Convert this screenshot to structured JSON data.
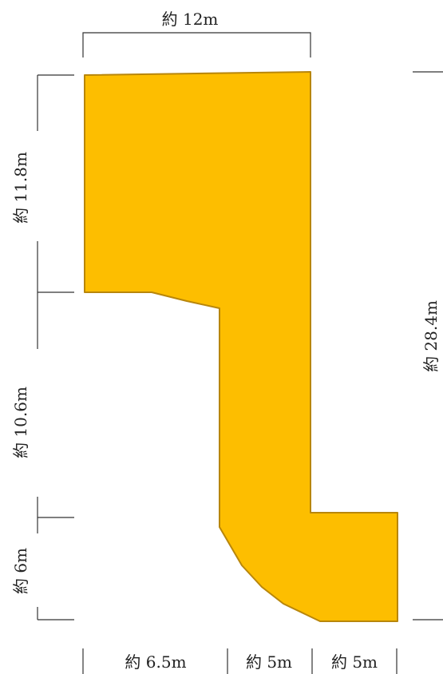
{
  "colors": {
    "plot_fill": "#FDBE00",
    "plot_stroke": "#B8860B",
    "dimension_line": "#333333",
    "text": "#222222"
  },
  "dimensions": {
    "top_width": "約 12m",
    "left_upper": "約 11.8m",
    "left_middle": "約 10.6m",
    "left_lower": "約 6m",
    "right_total": "約 28.4m",
    "bottom_left": "約 6.5m",
    "bottom_middle": "約 5m",
    "bottom_right": "約 5m"
  }
}
